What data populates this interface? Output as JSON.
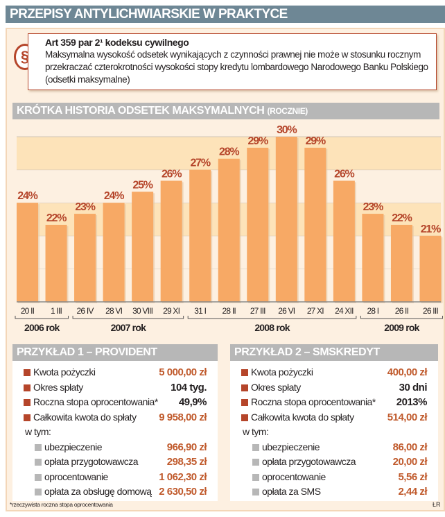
{
  "title": "PRZEPISY ANTYLICHWIARSKIE W PRAKTYCE",
  "law": {
    "icon": "paragraph-icon",
    "symbol": "§",
    "heading": "Art 359 par 2¹ kodeksu cywilnego",
    "text": "Maksymalna wysokość odsetek wynikających z czynności prawnej nie może w stosunku rocznym przekraczać czterokrotności wysokości stopy kredytu lombardowego Narodowego Banku Polskiego (odsetki maksymalne)"
  },
  "chart_section": {
    "title": "KRÓTKA HISTORIA ODSETEK MAKSYMALNYCH",
    "subtitle": "(ROCZNIE)"
  },
  "chart_data": {
    "type": "bar",
    "categories": [
      "20 II",
      "1 III",
      "26 IV",
      "28 VI",
      "30 VIII",
      "29 XI",
      "31 I",
      "28 II",
      "27 III",
      "26 VI",
      "27 XI",
      "24 XII",
      "28 I",
      "26 II",
      "26 III"
    ],
    "values": [
      24,
      22,
      23,
      24,
      25,
      26,
      27,
      28,
      29,
      30,
      29,
      26,
      23,
      22,
      21
    ],
    "data_labels": [
      "24%",
      "22%",
      "23%",
      "24%",
      "25%",
      "26%",
      "27%",
      "28%",
      "29%",
      "30%",
      "29%",
      "26%",
      "23%",
      "22%",
      "21%"
    ],
    "groups": [
      {
        "label": "2006 rok",
        "count": 2
      },
      {
        "label": "2007 rok",
        "count": 4
      },
      {
        "label": "2008 rok",
        "count": 6
      },
      {
        "label": "2009 rok",
        "count": 3
      }
    ],
    "ylim": [
      15,
      31
    ],
    "grid": true,
    "colors": {
      "bar": "#f7a965",
      "label": "#b5452a",
      "band": "#fde3b9"
    }
  },
  "examples": [
    {
      "title": "PRZYKŁAD 1 – PROVIDENT",
      "rows": [
        {
          "label": "Kwota pożyczki",
          "value": "5 000,00 zł"
        },
        {
          "label": "Okres spłaty",
          "value": "104 tyg."
        },
        {
          "label": "Roczna stopa oprocentowania*",
          "value": "49,9%"
        },
        {
          "label": "Całkowita kwota do spłaty",
          "value": "9 958,00 zł"
        }
      ],
      "subhead": "w tym:",
      "subrows": [
        {
          "label": "ubezpieczenie",
          "value": "966,90 zł"
        },
        {
          "label": "opłata przygotowawcza",
          "value": "298,35 zł"
        },
        {
          "label": "oprocentowanie",
          "value": "1 062,30 zł"
        },
        {
          "label": "opłata za obsługę domową",
          "value": "2 630,50 zł"
        }
      ]
    },
    {
      "title": "PRZYKŁAD 2 – SMSKREDYT",
      "rows": [
        {
          "label": "Kwota pożyczki",
          "value": "400,00 zł"
        },
        {
          "label": "Okres spłaty",
          "value": "30 dni"
        },
        {
          "label": "Roczna stopa oprocentowania*",
          "value": "2013%"
        },
        {
          "label": "Całkowita kwota do spłaty",
          "value": "514,00 zł"
        }
      ],
      "subhead": "w tym:",
      "subrows": [
        {
          "label": "ubezpieczenie",
          "value": "86,00 zł"
        },
        {
          "label": "opłata przygotowawcza",
          "value": "20,00 zł"
        },
        {
          "label": "oprocentowanie",
          "value": "5,56 zł"
        },
        {
          "label": "opłata za SMS",
          "value": "2,44 zł"
        }
      ]
    }
  ],
  "footnote": "*rzeczywista roczna stopa oprocentowania",
  "signature": "ŁR"
}
